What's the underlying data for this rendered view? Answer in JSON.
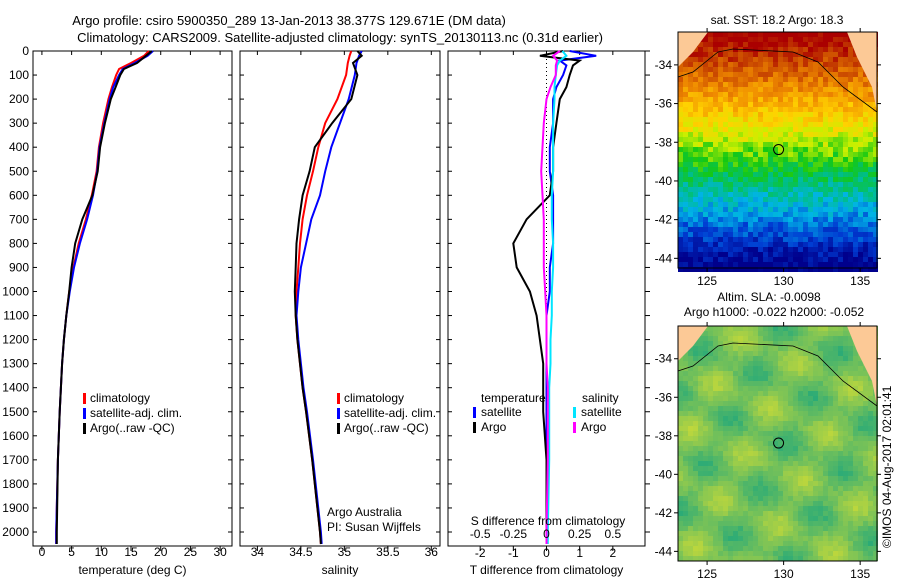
{
  "title": {
    "line1": "Argo profile: csiro 5900350_289 13-Jan-2013 38.377S 129.671E (DM data)",
    "line2": "Climatology: CARS2009. Satellite-adjusted climatology: synTS_20130113.nc (0.31d earlier)"
  },
  "copyright": "©IMOS 04-Aug-2017 02:01:41",
  "colors": {
    "climatology": "#ff0000",
    "satellite": "#0000ff",
    "argo": "#000000",
    "sal_satellite": "#00e5ff",
    "sal_argo": "#ff00ff"
  },
  "chart_data": [
    {
      "type": "line",
      "xlabel": "temperature (deg C)",
      "ylabel": "depth",
      "xlim": [
        -1.5,
        32
      ],
      "ylim": [
        2060,
        0
      ],
      "xticks": [
        "0",
        "5",
        "10",
        "15",
        "20",
        "25",
        "30"
      ],
      "yticks": [
        "0",
        "100",
        "200",
        "300",
        "400",
        "500",
        "600",
        "700",
        "800",
        "900",
        "1000",
        "1100",
        "1200",
        "1300",
        "1400",
        "1500",
        "1600",
        "1700",
        "1800",
        "1900",
        "2000"
      ],
      "legend": [
        "climatology",
        "satellite-adj. clim.",
        "Argo(..raw -QC)"
      ],
      "depth": [
        0,
        20,
        50,
        75,
        100,
        150,
        200,
        300,
        400,
        500,
        600,
        700,
        800,
        900,
        1000,
        1100,
        1200,
        1300,
        1400,
        1500,
        1700,
        2000,
        2050
      ],
      "series": [
        {
          "name": "climatology",
          "values": [
            18.0,
            17.2,
            15.0,
            13.0,
            12.5,
            11.8,
            11.2,
            10.3,
            9.6,
            9.2,
            8.4,
            7.4,
            6.2,
            5.3,
            4.6,
            4.1,
            3.7,
            3.4,
            3.2,
            3.0,
            2.7,
            2.4,
            2.4
          ]
        },
        {
          "name": "satellite-adj. clim.",
          "values": [
            18.7,
            17.8,
            15.6,
            13.6,
            13.0,
            12.0,
            11.4,
            10.5,
            9.7,
            9.3,
            8.6,
            7.6,
            6.4,
            5.4,
            4.7,
            4.1,
            3.7,
            3.4,
            3.2,
            3.0,
            2.7,
            2.4,
            2.4
          ]
        },
        {
          "name": "Argo(..raw -QC)",
          "values": [
            18.5,
            17.5,
            16.0,
            13.8,
            13.2,
            12.4,
            11.6,
            10.6,
            9.8,
            9.4,
            8.5,
            6.8,
            5.6,
            5.0,
            4.6,
            4.1,
            3.7,
            3.4,
            3.2,
            3.0,
            2.7,
            2.5,
            2.5
          ]
        }
      ]
    },
    {
      "type": "line",
      "xlabel": "salinity",
      "xlim": [
        33.8,
        36.1
      ],
      "ylim": [
        2060,
        0
      ],
      "xticks": [
        "34",
        "34.5",
        "35",
        "35.5",
        "36"
      ],
      "legend": [
        "climatology",
        "satellite-adj. clim.",
        "Argo(..raw -QC)"
      ],
      "annotation": [
        "Argo Australia",
        "PI: Susan Wijffels"
      ],
      "depth": [
        0,
        20,
        50,
        100,
        200,
        300,
        400,
        500,
        600,
        700,
        800,
        900,
        1000,
        1100,
        1200,
        1300,
        1400,
        1500,
        1700,
        2000,
        2050
      ],
      "series": [
        {
          "name": "climatology",
          "values": [
            35.08,
            35.06,
            35.04,
            35.02,
            34.92,
            34.78,
            34.7,
            34.64,
            34.57,
            34.52,
            34.49,
            34.47,
            34.45,
            34.44,
            34.46,
            34.49,
            34.52,
            34.56,
            34.63,
            34.72,
            34.73
          ]
        },
        {
          "name": "satellite-adj. clim.",
          "values": [
            35.2,
            35.17,
            35.14,
            35.12,
            35.05,
            34.95,
            34.85,
            34.78,
            34.72,
            34.62,
            34.56,
            34.5,
            34.47,
            34.45,
            34.47,
            34.5,
            34.53,
            34.57,
            34.64,
            34.73,
            34.74
          ]
        },
        {
          "name": "Argo(..raw -QC)",
          "values": [
            35.15,
            35.2,
            35.1,
            35.15,
            35.08,
            34.86,
            34.66,
            34.6,
            34.52,
            34.48,
            34.45,
            34.44,
            34.43,
            34.44,
            34.46,
            34.49,
            34.52,
            34.56,
            34.63,
            34.72,
            34.73
          ]
        }
      ]
    },
    {
      "type": "line",
      "xlabel": "T difference from climatology",
      "xlabel2": "S difference from climatology",
      "xlim": [
        -2.97,
        2.97
      ],
      "ylim": [
        2060,
        0
      ],
      "xticks": [
        "-2",
        "-1",
        "0",
        "1",
        "2"
      ],
      "xticks2": [
        "-0.5",
        "-0.25",
        "0",
        "0.25",
        "0.5"
      ],
      "legend": {
        "temperature": "temperature",
        "salinity": "salinity",
        "t_sat": "satellite",
        "t_argo": "Argo",
        "s_sat": "satellite",
        "s_argo": "Argo"
      },
      "depth": [
        0,
        20,
        40,
        60,
        100,
        150,
        200,
        300,
        400,
        500,
        600,
        700,
        800,
        900,
        1000,
        1100,
        1200,
        1300,
        1400,
        1500,
        1700,
        2000,
        2050
      ],
      "series": [
        {
          "name": "temperature satellite",
          "values": [
            0.7,
            1.5,
            0.4,
            0.6,
            0.5,
            0.3,
            0.2,
            0.2,
            0.1,
            0.1,
            0.2,
            0.2,
            0.2,
            0.1,
            0.1,
            0.0,
            0.0,
            0.0,
            0.0,
            0.0,
            0.0,
            0.0,
            0.0
          ]
        },
        {
          "name": "temperature Argo",
          "values": [
            0.5,
            -0.2,
            1.0,
            0.8,
            0.7,
            0.6,
            0.4,
            0.3,
            0.2,
            0.2,
            0.1,
            -0.6,
            -1.0,
            -0.9,
            -0.5,
            -0.3,
            -0.2,
            -0.1,
            -0.1,
            -0.1,
            0.0,
            0.0,
            0.0
          ]
        },
        {
          "name": "salinity satellite",
          "values": [
            0.12,
            0.15,
            0.1,
            0.08,
            0.07,
            0.06,
            0.06,
            0.05,
            0.05,
            0.05,
            0.04,
            0.04,
            0.05,
            0.05,
            0.04,
            0.04,
            0.03,
            0.03,
            0.02,
            0.02,
            0.02,
            0.01,
            0.01
          ]
        },
        {
          "name": "salinity Argo",
          "values": [
            0.1,
            0.05,
            0.08,
            0.07,
            0.07,
            0.03,
            0.0,
            -0.02,
            -0.03,
            -0.04,
            -0.03,
            -0.02,
            -0.02,
            -0.02,
            -0.01,
            0.0,
            0.0,
            0.0,
            0.01,
            0.01,
            0.01,
            0.0,
            0.0
          ]
        }
      ]
    },
    {
      "type": "heatmap",
      "title": "sat. SST: 18.2 Argo: 18.3",
      "xlim": [
        123.1,
        136.1
      ],
      "ylim": [
        -44.5,
        -32.3
      ],
      "xticks": [
        "125",
        "130",
        "135"
      ],
      "yticks": [
        "-34",
        "-36",
        "-38",
        "-40",
        "-42",
        "-44"
      ],
      "marker": {
        "lon": 129.671,
        "lat": -38.377
      }
    },
    {
      "type": "heatmap",
      "title": "Altim. SLA: -0.0098",
      "subtitle": "Argo h1000: -0.022 h2000: -0.052",
      "xlim": [
        123.1,
        136.1
      ],
      "ylim": [
        -44.5,
        -32.3
      ],
      "xticks": [
        "125",
        "130",
        "135"
      ],
      "yticks": [
        "-34",
        "-36",
        "-38",
        "-40",
        "-42",
        "-44"
      ],
      "marker": {
        "lon": 129.671,
        "lat": -38.377
      }
    }
  ]
}
